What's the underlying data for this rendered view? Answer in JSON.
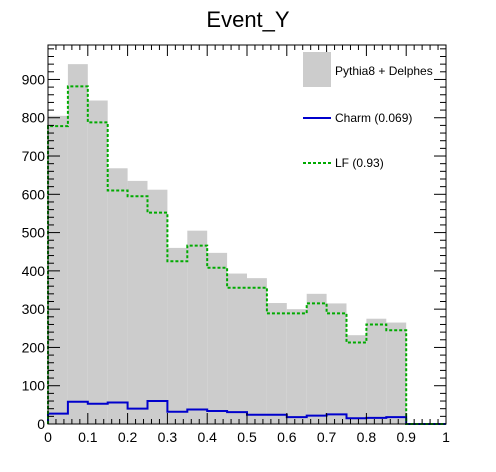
{
  "chart_data": {
    "type": "histogram",
    "title": "Event_Y",
    "xlabel": "",
    "ylabel": "",
    "xlim": [
      0,
      1
    ],
    "ylim": [
      0,
      990
    ],
    "bin_edges": [
      0,
      0.05,
      0.1,
      0.15,
      0.2,
      0.25,
      0.3,
      0.35,
      0.4,
      0.45,
      0.5,
      0.55,
      0.6,
      0.65,
      0.7,
      0.75,
      0.8,
      0.85,
      0.9,
      0.95,
      1.0
    ],
    "x_ticks": [
      0,
      0.1,
      0.2,
      0.3,
      0.4,
      0.5,
      0.6,
      0.7,
      0.8,
      0.9,
      1
    ],
    "x_tick_labels": [
      "0",
      "0.1",
      "0.2",
      "0.3",
      "0.4",
      "0.5",
      "0.6",
      "0.7",
      "0.8",
      "0.9",
      "1"
    ],
    "y_ticks": [
      0,
      100,
      200,
      300,
      400,
      500,
      600,
      700,
      800,
      900
    ],
    "y_tick_labels": [
      "0",
      "100",
      "200",
      "300",
      "400",
      "500",
      "600",
      "700",
      "800",
      "900"
    ],
    "legend_position": "top-right",
    "series": [
      {
        "name": "Pythia8 + Delphes",
        "style": "filled",
        "color": "#cccccc",
        "values": [
          805,
          940,
          845,
          668,
          635,
          612,
          460,
          505,
          447,
          393,
          381,
          316,
          300,
          340,
          315,
          232,
          275,
          265,
          0,
          0
        ]
      },
      {
        "name": "Charm (0.069)",
        "style": "solid-line",
        "color": "#0000cc",
        "values": [
          27,
          58,
          53,
          56,
          40,
          60,
          32,
          38,
          34,
          31,
          24,
          24,
          18,
          22,
          25,
          15,
          16,
          18,
          0,
          0
        ]
      },
      {
        "name": "LF (0.93)",
        "style": "dashed-line",
        "color": "#00aa00",
        "values": [
          778,
          882,
          788,
          610,
          595,
          552,
          425,
          466,
          408,
          356,
          356,
          289,
          289,
          315,
          289,
          213,
          260,
          245,
          0,
          0
        ]
      }
    ]
  }
}
